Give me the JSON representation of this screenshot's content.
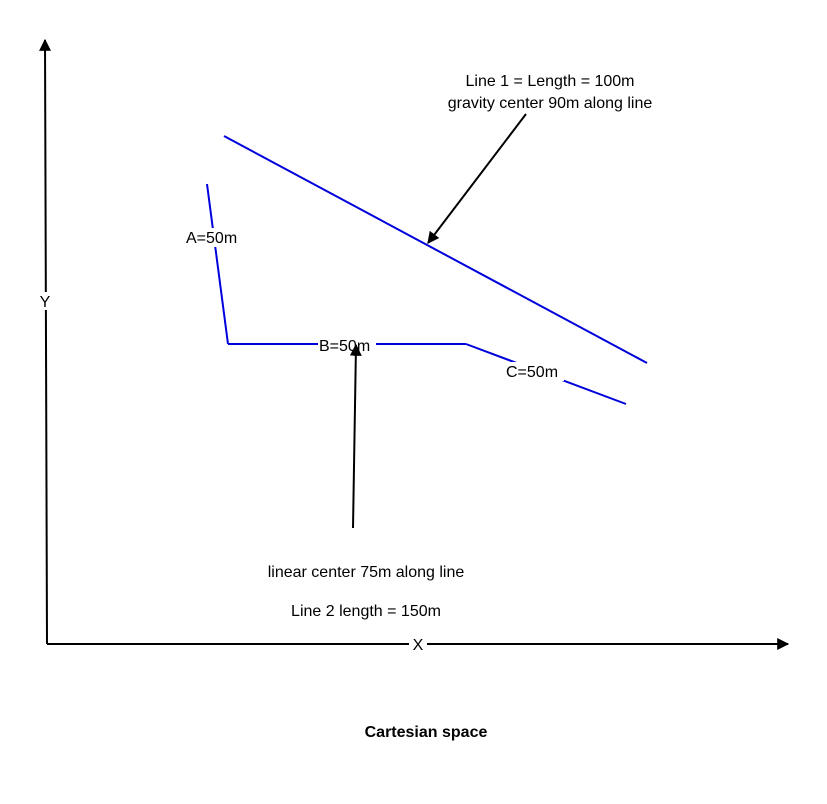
{
  "diagram": {
    "axes": {
      "y_label": "Y",
      "x_label": "X"
    },
    "line1": {
      "label_line1": "Line 1 = Length = 100m",
      "label_line2": "gravity center 90m along line"
    },
    "line2": {
      "segment_a": "A=50m",
      "segment_b": "B=50m",
      "segment_c": "C=50m",
      "center_note": "linear center 75m along line",
      "length_note": "Line 2 length = 150m"
    },
    "caption": "Cartesian space",
    "colors": {
      "line": "#0000dd",
      "axis": "#000000",
      "text": "#000000"
    }
  }
}
